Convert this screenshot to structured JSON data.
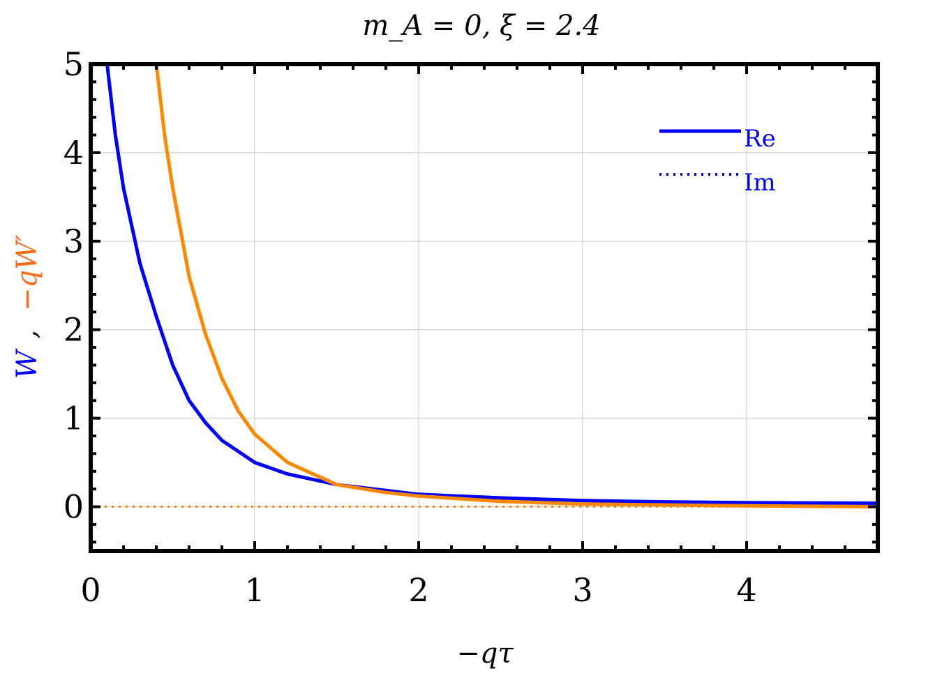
{
  "chart_data": {
    "type": "line",
    "title": "m_A = 0, ξ = 2.4",
    "xlabel": "−qτ",
    "ylabel_parts": [
      "W",
      ",",
      "−qW′"
    ],
    "xlim": [
      0,
      4.8
    ],
    "ylim": [
      -0.5,
      5
    ],
    "xticks": [
      "0",
      "1",
      "2",
      "3",
      "4"
    ],
    "yticks": [
      "0",
      "1",
      "2",
      "3",
      "4",
      "5"
    ],
    "grid": true,
    "legend_position": "top-right",
    "legend": [
      {
        "label": "Re",
        "style": "solid"
      },
      {
        "label": "Im",
        "style": "dotted"
      }
    ],
    "colors": {
      "blue": "#0000ff",
      "orange": "#ff8800",
      "legend_text": "#0000ff"
    },
    "series": [
      {
        "color": "blue",
        "style": "solid",
        "x": [
          0.1,
          0.15,
          0.2,
          0.3,
          0.4,
          0.5,
          0.6,
          0.7,
          0.8,
          1.0,
          1.2,
          1.5,
          2.0,
          2.5,
          3.0,
          3.5,
          4.0,
          4.8
        ],
        "y": [
          5.0,
          4.2,
          3.6,
          2.75,
          2.15,
          1.6,
          1.2,
          0.95,
          0.75,
          0.5,
          0.37,
          0.25,
          0.14,
          0.1,
          0.07,
          0.055,
          0.045,
          0.04
        ]
      },
      {
        "color": "orange",
        "style": "solid",
        "x": [
          0.4,
          0.45,
          0.5,
          0.55,
          0.6,
          0.7,
          0.8,
          0.9,
          1.0,
          1.2,
          1.5,
          1.8,
          2.0,
          2.5,
          3.0,
          3.5,
          4.0,
          4.8
        ],
        "y": [
          5.0,
          4.2,
          3.6,
          3.1,
          2.6,
          1.95,
          1.45,
          1.08,
          0.82,
          0.5,
          0.25,
          0.16,
          0.12,
          0.06,
          0.03,
          0.02,
          0.01,
          0.0
        ]
      },
      {
        "color": "blue",
        "style": "dotted",
        "x": [
          0,
          4.8
        ],
        "y": [
          0,
          0
        ]
      },
      {
        "color": "orange",
        "style": "dotted",
        "x": [
          0,
          4.8
        ],
        "y": [
          0,
          0
        ]
      }
    ]
  }
}
